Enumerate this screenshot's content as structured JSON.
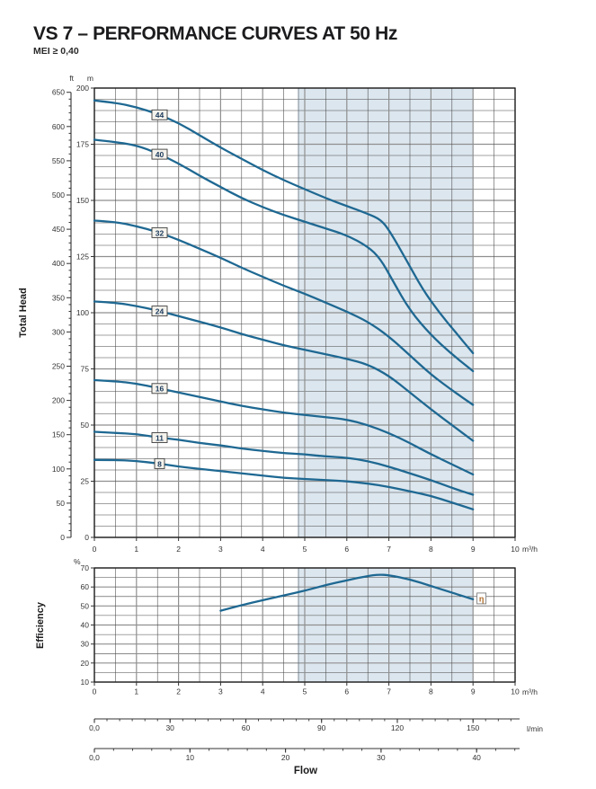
{
  "page": {
    "title": "VS 7 – PERFORMANCE CURVES AT 50 Hz",
    "subtitle": "MEI ≥ 0,40"
  },
  "colors": {
    "curve": "#1e6892",
    "band": "#dce6ee",
    "band_edge": "#5f6f7d",
    "grid_minor": "#454545",
    "grid_major": "#8f8f8f",
    "border": "#141414",
    "tick_text": "#333333",
    "label_box_bg": "#f4f2ec",
    "label_box_border": "#3c3c3c",
    "label_text": "#1b3a5c",
    "eta_text": "#ad6a28",
    "ruler": "#333333"
  },
  "chart_data": [
    {
      "type": "line",
      "name": "head_chart",
      "ylabel": "Total Head",
      "x_axis": {
        "label": "m³/h",
        "min": 0,
        "max": 10,
        "ticks": [
          "0",
          "1",
          "2",
          "3",
          "4",
          "5",
          "6",
          "7",
          "8",
          "9",
          "10"
        ],
        "minor_step": 0.5
      },
      "y_axis_m": {
        "label": "m",
        "min": 0,
        "max": 200,
        "tick_step": 25,
        "minor_step": 5
      },
      "y_axis_ft": {
        "label": "ft",
        "min": 0,
        "max": 650,
        "tick_step": 50,
        "minor_step": 10
      },
      "duty_band": {
        "from": 4.85,
        "to": 9
      },
      "series": [
        {
          "label": "44",
          "label_x": 1.55,
          "points": [
            [
              0,
              194.5
            ],
            [
              0.5,
              193.5
            ],
            [
              1,
              191.5
            ],
            [
              1.5,
              188.5
            ],
            [
              2,
              184.5
            ],
            [
              2.5,
              179
            ],
            [
              3,
              173.5
            ],
            [
              3.5,
              168.5
            ],
            [
              4,
              163.5
            ],
            [
              4.5,
              159
            ],
            [
              5,
              155
            ],
            [
              5.5,
              151
            ],
            [
              6,
              147.5
            ],
            [
              6.5,
              144
            ],
            [
              6.8,
              141.5
            ],
            [
              7,
              137
            ],
            [
              7.4,
              124
            ],
            [
              7.8,
              110.5
            ],
            [
              8.2,
              100
            ],
            [
              8.6,
              91
            ],
            [
              9,
              82
            ]
          ]
        },
        {
          "label": "40",
          "label_x": 1.55,
          "points": [
            [
              0,
              177
            ],
            [
              0.5,
              176
            ],
            [
              1,
              174.5
            ],
            [
              1.5,
              171
            ],
            [
              2,
              166.5
            ],
            [
              2.5,
              161
            ],
            [
              3,
              156
            ],
            [
              3.5,
              151
            ],
            [
              4,
              147
            ],
            [
              4.5,
              143.5
            ],
            [
              5,
              140.5
            ],
            [
              5.5,
              137.5
            ],
            [
              6,
              134.5
            ],
            [
              6.5,
              129.5
            ],
            [
              6.8,
              124
            ],
            [
              7.1,
              114
            ],
            [
              7.5,
              101
            ],
            [
              8,
              90
            ],
            [
              8.5,
              81.5
            ],
            [
              9,
              74
            ]
          ]
        },
        {
          "label": "32",
          "label_x": 1.55,
          "points": [
            [
              0,
              141
            ],
            [
              0.5,
              140.5
            ],
            [
              1,
              138.5
            ],
            [
              1.5,
              136
            ],
            [
              2,
              132.5
            ],
            [
              2.5,
              128.5
            ],
            [
              3,
              124.5
            ],
            [
              3.5,
              120
            ],
            [
              4,
              116
            ],
            [
              4.5,
              112
            ],
            [
              5,
              108.5
            ],
            [
              5.5,
              104.5
            ],
            [
              6,
              100.5
            ],
            [
              6.5,
              96
            ],
            [
              7,
              89.5
            ],
            [
              7.5,
              81
            ],
            [
              8,
              72.5
            ],
            [
              8.5,
              65.5
            ],
            [
              9,
              59
            ]
          ]
        },
        {
          "label": "24",
          "label_x": 1.55,
          "points": [
            [
              0,
              105
            ],
            [
              0.5,
              104.5
            ],
            [
              1,
              103
            ],
            [
              1.5,
              101
            ],
            [
              2,
              98.5
            ],
            [
              2.5,
              96
            ],
            [
              3,
              93.5
            ],
            [
              3.5,
              90.5
            ],
            [
              4,
              88
            ],
            [
              4.5,
              85.5
            ],
            [
              5,
              83.5
            ],
            [
              5.5,
              81.5
            ],
            [
              6,
              79.5
            ],
            [
              6.5,
              77
            ],
            [
              7,
              72
            ],
            [
              7.5,
              64.5
            ],
            [
              8,
              57
            ],
            [
              8.5,
              50
            ],
            [
              9,
              43
            ]
          ]
        },
        {
          "label": "16",
          "label_x": 1.55,
          "points": [
            [
              0,
              70
            ],
            [
              0.5,
              69.5
            ],
            [
              1,
              68.5
            ],
            [
              1.5,
              66.5
            ],
            [
              2,
              64.5
            ],
            [
              2.5,
              62.5
            ],
            [
              3,
              60.5
            ],
            [
              3.5,
              58.5
            ],
            [
              4,
              57
            ],
            [
              4.5,
              55.5
            ],
            [
              5,
              54.5
            ],
            [
              5.5,
              53.5
            ],
            [
              6,
              52.5
            ],
            [
              6.5,
              50
            ],
            [
              7,
              46.5
            ],
            [
              7.5,
              42
            ],
            [
              8,
              37
            ],
            [
              8.5,
              32.5
            ],
            [
              9,
              28
            ]
          ]
        },
        {
          "label": "11",
          "label_x": 1.55,
          "points": [
            [
              0,
              47
            ],
            [
              0.5,
              46.5
            ],
            [
              1,
              46
            ],
            [
              1.5,
              44.5
            ],
            [
              2,
              43.5
            ],
            [
              2.5,
              42
            ],
            [
              3,
              41
            ],
            [
              3.5,
              39.5
            ],
            [
              4,
              38.5
            ],
            [
              4.5,
              37.5
            ],
            [
              5,
              37
            ],
            [
              5.5,
              36
            ],
            [
              6,
              35.5
            ],
            [
              6.5,
              34
            ],
            [
              7,
              31.5
            ],
            [
              7.5,
              28.5
            ],
            [
              8,
              25.5
            ],
            [
              8.5,
              22
            ],
            [
              9,
              19
            ]
          ]
        },
        {
          "label": "8",
          "label_x": 1.55,
          "points": [
            [
              0,
              34.5
            ],
            [
              0.5,
              34.5
            ],
            [
              1,
              34
            ],
            [
              1.5,
              33
            ],
            [
              2,
              31.5
            ],
            [
              2.5,
              30.5
            ],
            [
              3,
              29.5
            ],
            [
              3.5,
              28.5
            ],
            [
              4,
              27.5
            ],
            [
              4.5,
              26.5
            ],
            [
              5,
              26
            ],
            [
              5.5,
              25.5
            ],
            [
              6,
              25
            ],
            [
              6.5,
              24
            ],
            [
              7,
              22.5
            ],
            [
              7.5,
              20.5
            ],
            [
              8,
              18.5
            ],
            [
              8.5,
              15.5
            ],
            [
              9,
              12.5
            ]
          ]
        }
      ]
    },
    {
      "type": "line",
      "name": "efficiency_chart",
      "ylabel": "Efficiency",
      "x_axis": {
        "label": "m³/h",
        "min": 0,
        "max": 10,
        "ticks": [
          "0",
          "1",
          "2",
          "3",
          "4",
          "5",
          "6",
          "7",
          "8",
          "9",
          "10"
        ],
        "minor_step": 0.5
      },
      "y_axis": {
        "label": "%",
        "min": 10,
        "max": 70,
        "tick_step": 10,
        "minor_step": 5
      },
      "duty_band": {
        "from": 4.85,
        "to": 9
      },
      "series": [
        {
          "label": "η",
          "label_x": 9.2,
          "label_y": 54,
          "points": [
            [
              3,
              47.5
            ],
            [
              3.5,
              50.5
            ],
            [
              4,
              53
            ],
            [
              4.5,
              55.5
            ],
            [
              5,
              58
            ],
            [
              5.5,
              61
            ],
            [
              6,
              63.5
            ],
            [
              6.5,
              65.8
            ],
            [
              6.75,
              66.5
            ],
            [
              7,
              66.2
            ],
            [
              7.5,
              64
            ],
            [
              8,
              60.5
            ],
            [
              8.5,
              57
            ],
            [
              9,
              53.5
            ]
          ]
        }
      ]
    }
  ],
  "flow_rulers": {
    "lmin": {
      "label": "l/min",
      "tick_labels": [
        "0,0",
        "30",
        "60",
        "90",
        "120",
        "150"
      ],
      "tick_values": [
        0,
        30,
        60,
        90,
        120,
        150
      ],
      "minor_step": 5,
      "max": 168,
      "units_per_m3h": 16.6667
    },
    "gpm": {
      "tick_labels": [
        "0,0",
        "10",
        "20",
        "30",
        "40"
      ],
      "tick_values": [
        0,
        10,
        20,
        30,
        40
      ],
      "minor_step": 2,
      "max": 44.4,
      "units_per_m3h": 4.4029
    },
    "axis_label": "Flow"
  }
}
